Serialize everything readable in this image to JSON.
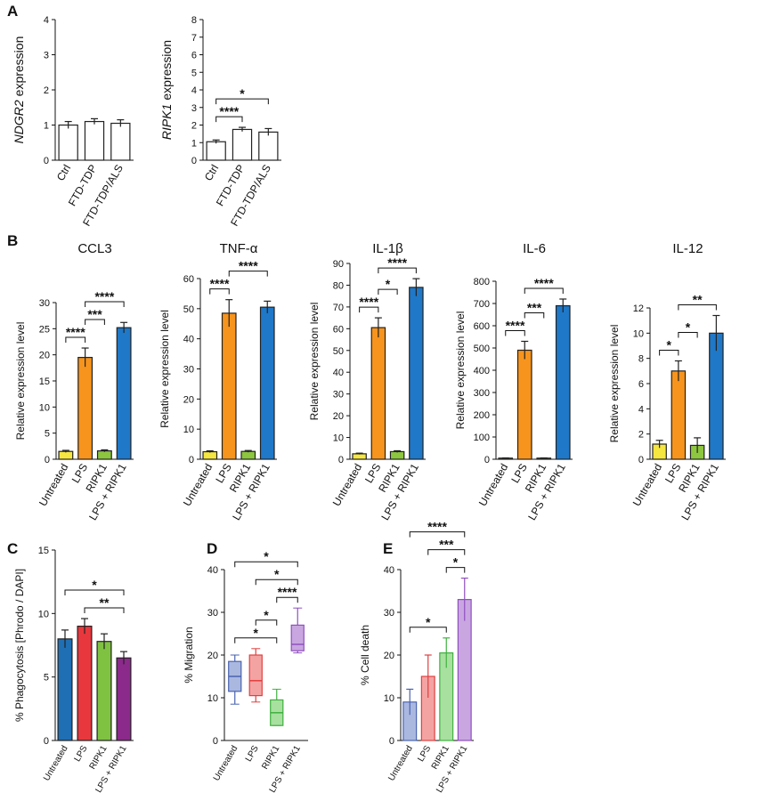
{
  "chart_data": [
    {
      "type": "bar",
      "panel": "A",
      "ylabel_gene": "NDGR2",
      "ylabel": "expression",
      "categories": [
        "Ctrl",
        "FTD-TDP",
        "FTD-TDP/ALS"
      ],
      "values": [
        1.0,
        1.1,
        1.05
      ],
      "errors": [
        0.1,
        0.08,
        0.1
      ],
      "colors": [
        "#ffffff",
        "#ffffff",
        "#ffffff"
      ],
      "ylim": [
        0,
        4
      ],
      "yticks": [
        0,
        1,
        2,
        3,
        4
      ],
      "brackets": []
    },
    {
      "type": "bar",
      "ylabel_gene": "RIPK1",
      "ylabel": "expression",
      "categories": [
        "Ctrl",
        "FTD-TDP",
        "FTD-TDP/ALS"
      ],
      "values": [
        1.05,
        1.75,
        1.6
      ],
      "errors": [
        0.1,
        0.12,
        0.2
      ],
      "colors": [
        "#ffffff",
        "#ffffff",
        "#ffffff"
      ],
      "ylim": [
        0,
        8
      ],
      "yticks": [
        0,
        1,
        2,
        3,
        4,
        5,
        6,
        7,
        8
      ],
      "brackets": [
        {
          "label": "****",
          "groups": [
            0,
            1
          ]
        },
        {
          "label": "*",
          "groups": [
            0,
            2
          ]
        }
      ]
    },
    {
      "type": "bar",
      "panel": "B",
      "title": "CCL3",
      "ylabel": "Relative expression level",
      "categories": [
        "Untreated",
        "LPS",
        "RIPK1",
        "LPS + RIPK1"
      ],
      "values": [
        1.5,
        19.5,
        1.6,
        25.2
      ],
      "errors": [
        0.2,
        1.8,
        0.2,
        1.0
      ],
      "colors": [
        "#f5e642",
        "#f7941d",
        "#8dc63f",
        "#1f78c8"
      ],
      "ylim": [
        0,
        30
      ],
      "yticks": [
        0,
        5,
        10,
        15,
        20,
        25,
        30
      ],
      "brackets": [
        {
          "label": "****",
          "groups": [
            0,
            1
          ]
        },
        {
          "label": "***",
          "groups": [
            1,
            2
          ]
        },
        {
          "label": "****",
          "groups": [
            1,
            3
          ]
        }
      ]
    },
    {
      "type": "bar",
      "title": "TNF-α",
      "ylabel": "Relative expression level",
      "categories": [
        "Untreated",
        "LPS",
        "RIPK1",
        "LPS + RIPK1"
      ],
      "values": [
        2.5,
        48.5,
        2.6,
        50.5
      ],
      "errors": [
        0.3,
        4.5,
        0.3,
        2.0
      ],
      "colors": [
        "#f5e642",
        "#f7941d",
        "#8dc63f",
        "#1f78c8"
      ],
      "ylim": [
        0,
        60
      ],
      "yticks": [
        0,
        10,
        20,
        30,
        40,
        50,
        60
      ],
      "brackets": [
        {
          "label": "****",
          "groups": [
            0,
            1
          ]
        },
        {
          "label": "****",
          "groups": [
            1,
            3
          ]
        }
      ]
    },
    {
      "type": "bar",
      "title": "IL-1β",
      "ylabel": "Relative expression level",
      "categories": [
        "Untreated",
        "LPS",
        "RIPK1",
        "LPS + RIPK1"
      ],
      "values": [
        2.5,
        60.5,
        3.5,
        79
      ],
      "errors": [
        0.3,
        4.5,
        0.4,
        4.0
      ],
      "colors": [
        "#f5e642",
        "#f7941d",
        "#8dc63f",
        "#1f78c8"
      ],
      "ylim": [
        0,
        90
      ],
      "yticks": [
        0,
        10,
        20,
        30,
        40,
        50,
        60,
        70,
        80,
        90
      ],
      "brackets": [
        {
          "label": "****",
          "groups": [
            0,
            1
          ]
        },
        {
          "label": "*",
          "groups": [
            1,
            2
          ]
        },
        {
          "label": "****",
          "groups": [
            1,
            3
          ]
        }
      ]
    },
    {
      "type": "bar",
      "title": "IL-6",
      "ylabel": "Relative expression level",
      "categories": [
        "Untreated",
        "LPS",
        "RIPK1",
        "LPS + RIPK1"
      ],
      "values": [
        5,
        490,
        5,
        690
      ],
      "errors": [
        1,
        40,
        1,
        30
      ],
      "colors": [
        "#f5e642",
        "#f7941d",
        "#8dc63f",
        "#1f78c8"
      ],
      "ylim": [
        0,
        800
      ],
      "yticks": [
        0,
        100,
        200,
        300,
        400,
        500,
        600,
        700,
        800
      ],
      "brackets": [
        {
          "label": "****",
          "groups": [
            0,
            1
          ]
        },
        {
          "label": "***",
          "groups": [
            1,
            2
          ]
        },
        {
          "label": "****",
          "groups": [
            1,
            3
          ]
        }
      ]
    },
    {
      "type": "bar",
      "title": "IL-12",
      "ylabel": "Relative expression level",
      "categories": [
        "Untreated",
        "LPS",
        "RIPK1",
        "LPS + RIPK1"
      ],
      "values": [
        1.2,
        7,
        1.1,
        10
      ],
      "errors": [
        0.3,
        0.8,
        0.6,
        1.4
      ],
      "colors": [
        "#f5e642",
        "#f7941d",
        "#8dc63f",
        "#1f78c8"
      ],
      "ylim": [
        0,
        12
      ],
      "yticks": [
        0,
        2,
        4,
        6,
        8,
        10,
        12
      ],
      "brackets": [
        {
          "label": "*",
          "groups": [
            0,
            1
          ]
        },
        {
          "label": "*",
          "groups": [
            1,
            2
          ]
        },
        {
          "label": "**",
          "groups": [
            1,
            3
          ]
        }
      ]
    },
    {
      "type": "bar",
      "panel": "C",
      "ylabel": "% Phagocytosis  [Phrodo / DAPI]",
      "categories": [
        "Untreated",
        "LPS",
        "RIPK1",
        "LPS + RIPK1"
      ],
      "values": [
        8,
        9,
        7.8,
        6.5
      ],
      "errors": [
        0.7,
        0.6,
        0.6,
        0.5
      ],
      "colors": [
        "#1f6fb5",
        "#e8383d",
        "#7fc241",
        "#8b2a8b"
      ],
      "ylim": [
        0,
        15
      ],
      "yticks": [
        0,
        5,
        10,
        15
      ],
      "brackets": [
        {
          "label": "**",
          "groups": [
            1,
            3
          ]
        },
        {
          "label": "*",
          "groups": [
            0,
            3
          ]
        }
      ]
    },
    {
      "type": "box",
      "panel": "D",
      "ylabel": "% Migration",
      "categories": [
        "Untreated",
        "LPS",
        "RIPK1",
        "LPS + RIPK1"
      ],
      "boxes": [
        {
          "min": 8.5,
          "q1": 11.5,
          "median": 15,
          "q3": 18.5,
          "max": 20
        },
        {
          "min": 9,
          "q1": 10.5,
          "median": 14,
          "q3": 20,
          "max": 21.5
        },
        {
          "min": 3.5,
          "q1": 3.5,
          "median": 6.5,
          "q3": 9.5,
          "max": 12
        },
        {
          "min": 20.5,
          "q1": 21,
          "median": 22.5,
          "q3": 27,
          "max": 31
        }
      ],
      "colors": [
        "#aab8e0",
        "#f4a3a3",
        "#a8e0a0",
        "#c9a6e0"
      ],
      "edge_colors": [
        "#4a63b0",
        "#e04040",
        "#40b040",
        "#9050c0"
      ],
      "ylim": [
        0,
        40
      ],
      "yticks": [
        0,
        10,
        20,
        30,
        40
      ],
      "brackets": [
        {
          "label": "*",
          "groups": [
            0,
            2
          ]
        },
        {
          "label": "*",
          "groups": [
            1,
            2
          ]
        },
        {
          "label": "****",
          "groups": [
            2,
            3
          ]
        },
        {
          "label": "*",
          "groups": [
            1,
            3
          ]
        },
        {
          "label": "*",
          "groups": [
            0,
            3
          ]
        }
      ]
    },
    {
      "type": "bar",
      "panel": "E",
      "ylabel": "% Cell death",
      "categories": [
        "Untreated",
        "LPS",
        "RIPK1",
        "LPS + RIPK1"
      ],
      "values": [
        9,
        15,
        20.5,
        33
      ],
      "errors": [
        3,
        5,
        3.5,
        5
      ],
      "colors": [
        "#aab8e0",
        "#f4a3a3",
        "#a8e0a0",
        "#c9a6e0"
      ],
      "edge_colors": [
        "#4a63b0",
        "#e04040",
        "#40b040",
        "#9050c0"
      ],
      "ylim": [
        0,
        40
      ],
      "yticks": [
        0,
        10,
        20,
        30,
        40
      ],
      "brackets": [
        {
          "label": "*",
          "groups": [
            0,
            2
          ]
        },
        {
          "label": "*",
          "groups": [
            2,
            3
          ]
        },
        {
          "label": "***",
          "groups": [
            1,
            3
          ]
        },
        {
          "label": "****",
          "groups": [
            0,
            3
          ]
        }
      ]
    }
  ]
}
